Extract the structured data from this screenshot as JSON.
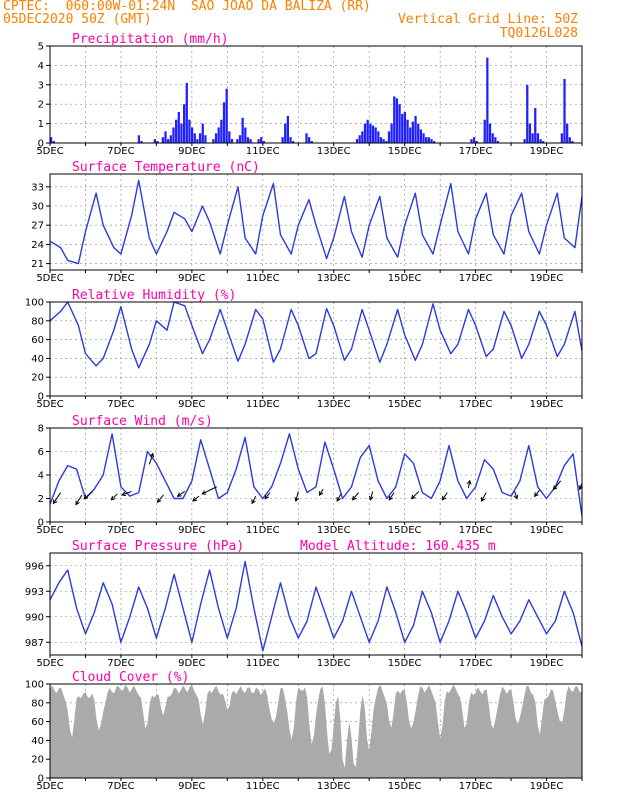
{
  "header": {
    "line1": "CPTEC:  060:00W-01:24N  SAO JOAO DA BALIZA (RR)",
    "line2": "05DEC2020 50Z (GMT)",
    "grid_note": "Vertical Grid Line: 50Z",
    "run_id": "TQ0126L028"
  },
  "colors": {
    "header": "#ff7f00",
    "title": "#ff00aa",
    "line": "#2b3bdc",
    "bar": "#2020ff",
    "cloud": "#aaaaaa",
    "grid": "#888888"
  },
  "x_labels": [
    "5DEC",
    "7DEC",
    "9DEC",
    "11DEC",
    "13DEC",
    "15DEC",
    "17DEC",
    "19DEC"
  ],
  "x_range_days": [
    0,
    15
  ],
  "chart_data": [
    {
      "id": "precip",
      "type": "bar",
      "title": "Precipitation (mm/h)",
      "ylim": [
        0,
        5
      ],
      "yticks": [
        0,
        1,
        2,
        3,
        4,
        5
      ],
      "series": [
        {
          "values": [
            0.3,
            0.1,
            0,
            0,
            0,
            0,
            0,
            0,
            0,
            0,
            0,
            0,
            0,
            0,
            0,
            0,
            0,
            0,
            0,
            0,
            0,
            0,
            0,
            0,
            0,
            0,
            0,
            0,
            0,
            0,
            0,
            0,
            0,
            0.4,
            0.1,
            0,
            0,
            0,
            0,
            0.2,
            0.1,
            0,
            0.3,
            0.6,
            0.2,
            0.4,
            0.8,
            1.2,
            1.6,
            1.0,
            2.0,
            3.1,
            1.2,
            0.8,
            0.5,
            0.2,
            0.5,
            1.0,
            0.4,
            0,
            0,
            0.2,
            0.5,
            0.8,
            1.2,
            2.1,
            2.8,
            0.6,
            0.2,
            0,
            0.2,
            0.4,
            1.3,
            0.8,
            0.3,
            0.2,
            0,
            0,
            0.2,
            0.3,
            0.1,
            0,
            0,
            0,
            0,
            0,
            0,
            0.3,
            1.0,
            1.4,
            0.3,
            0.1,
            0,
            0,
            0,
            0,
            0.5,
            0.3,
            0.1,
            0,
            0,
            0,
            0,
            0,
            0,
            0,
            0,
            0,
            0,
            0,
            0,
            0,
            0,
            0,
            0,
            0.2,
            0.4,
            0.6,
            1.0,
            1.2,
            1.0,
            0.9,
            0.8,
            0.6,
            0.3,
            0.2,
            0.1,
            0.6,
            1.0,
            2.4,
            2.3,
            2.0,
            1.5,
            1.6,
            1.2,
            0.8,
            1.1,
            1.4,
            1.0,
            0.7,
            0.5,
            0.3,
            0.3,
            0.2,
            0.1,
            0,
            0,
            0,
            0,
            0,
            0,
            0,
            0,
            0,
            0,
            0,
            0,
            0,
            0.2,
            0.3,
            0.1,
            0,
            0,
            1.2,
            4.4,
            1.0,
            0.5,
            0.3,
            0.1,
            0,
            0,
            0,
            0,
            0,
            0,
            0,
            0,
            0,
            0.2,
            3.0,
            1.0,
            0.5,
            1.8,
            0.5,
            0.2,
            0.1,
            0,
            0,
            0,
            0,
            0,
            0,
            0.5,
            3.3,
            1.0,
            0.3,
            0.1,
            0,
            0,
            0
          ]
        }
      ],
      "x_start_day": 0,
      "x_end_day": 15
    },
    {
      "id": "temp",
      "type": "line",
      "title": "Surface Temperature (nC)",
      "ylim": [
        20,
        35
      ],
      "yticks": [
        21,
        24,
        27,
        30,
        33
      ],
      "x": [
        0,
        0.3,
        0.5,
        0.8,
        1.0,
        1.3,
        1.5,
        1.8,
        2.0,
        2.3,
        2.5,
        2.8,
        3.0,
        3.3,
        3.5,
        3.8,
        4.0,
        4.3,
        4.5,
        4.8,
        5.0,
        5.3,
        5.5,
        5.8,
        6.0,
        6.3,
        6.5,
        6.8,
        7.0,
        7.3,
        7.5,
        7.8,
        8.0,
        8.3,
        8.5,
        8.8,
        9.0,
        9.3,
        9.5,
        9.8,
        10.0,
        10.3,
        10.5,
        10.8,
        11.0,
        11.3,
        11.5,
        11.8,
        12.0,
        12.3,
        12.5,
        12.8,
        13.0,
        13.3,
        13.5,
        13.8,
        14.0,
        14.3,
        14.5,
        14.8,
        15.0
      ],
      "series": [
        {
          "values": [
            24.5,
            23.5,
            21.5,
            21,
            26,
            32,
            27,
            23.5,
            22.5,
            28.5,
            34,
            25,
            22.5,
            26,
            29,
            28,
            26,
            30,
            27.5,
            22.5,
            27,
            33,
            25,
            22.5,
            28.5,
            33.5,
            25.5,
            22.5,
            27,
            31,
            27,
            21.8,
            25,
            31.5,
            26,
            22,
            27,
            31.5,
            25,
            22,
            27,
            32,
            25.5,
            22.5,
            27,
            33.5,
            26,
            22.5,
            28,
            32,
            25.5,
            22.5,
            28.5,
            32,
            26,
            22.5,
            27,
            32,
            25,
            23.5,
            31.5
          ]
        }
      ]
    },
    {
      "id": "rh",
      "type": "line",
      "title": "Relative Humidity (%)",
      "ylim": [
        0,
        100
      ],
      "yticks": [
        0,
        20,
        40,
        60,
        80,
        100
      ],
      "x": [
        0,
        0.3,
        0.5,
        0.8,
        1.0,
        1.3,
        1.5,
        1.8,
        2.0,
        2.3,
        2.5,
        2.8,
        3.0,
        3.3,
        3.5,
        3.8,
        4.0,
        4.3,
        4.5,
        4.8,
        5.0,
        5.3,
        5.5,
        5.8,
        6.0,
        6.3,
        6.5,
        6.8,
        7.0,
        7.3,
        7.5,
        7.8,
        8.0,
        8.3,
        8.5,
        8.8,
        9.0,
        9.3,
        9.5,
        9.8,
        10.0,
        10.3,
        10.5,
        10.8,
        11.0,
        11.3,
        11.5,
        11.8,
        12.0,
        12.3,
        12.5,
        12.8,
        13.0,
        13.3,
        13.5,
        13.8,
        14.0,
        14.3,
        14.5,
        14.8,
        15.0
      ],
      "series": [
        {
          "values": [
            80,
            90,
            100,
            75,
            45,
            32,
            40,
            70,
            95,
            50,
            30,
            55,
            80,
            70,
            100,
            96,
            75,
            45,
            60,
            92,
            70,
            37,
            55,
            92,
            82,
            36,
            50,
            92,
            75,
            40,
            45,
            93,
            75,
            38,
            50,
            92,
            70,
            36,
            55,
            92,
            65,
            38,
            55,
            98,
            70,
            45,
            55,
            92,
            75,
            42,
            50,
            90,
            75,
            40,
            55,
            90,
            75,
            42,
            55,
            90,
            48
          ]
        }
      ]
    },
    {
      "id": "wind",
      "type": "line",
      "title": "Surface Wind (m/s)",
      "ylim": [
        0,
        8
      ],
      "yticks": [
        0,
        2,
        4,
        6,
        8
      ],
      "x": [
        0,
        0.25,
        0.5,
        0.75,
        1.0,
        1.25,
        1.5,
        1.75,
        2.0,
        2.25,
        2.5,
        2.75,
        3.0,
        3.25,
        3.5,
        3.75,
        4.0,
        4.25,
        4.5,
        4.75,
        5.0,
        5.25,
        5.5,
        5.75,
        6.0,
        6.25,
        6.5,
        6.75,
        7.0,
        7.25,
        7.5,
        7.75,
        8.0,
        8.25,
        8.5,
        8.75,
        9.0,
        9.25,
        9.5,
        9.75,
        10.0,
        10.25,
        10.5,
        10.75,
        11.0,
        11.25,
        11.5,
        11.75,
        12.0,
        12.25,
        12.5,
        12.75,
        13.0,
        13.25,
        13.5,
        13.75,
        14.0,
        14.25,
        14.5,
        14.75,
        15.0
      ],
      "series": [
        {
          "values": [
            1.5,
            3.5,
            4.8,
            4.5,
            2.0,
            2.8,
            4.0,
            7.5,
            3.0,
            2.2,
            2.5,
            6.0,
            5.0,
            3.5,
            2.0,
            2.0,
            3.5,
            7.0,
            4.5,
            2.0,
            2.5,
            4.5,
            7.2,
            3.0,
            2.0,
            3.0,
            5.0,
            7.5,
            4.5,
            2.5,
            3.0,
            6.8,
            4.5,
            2.0,
            3.0,
            5.5,
            6.5,
            3.5,
            2.0,
            3.0,
            5.8,
            5.0,
            2.5,
            2.0,
            3.5,
            6.5,
            3.5,
            2.0,
            3.0,
            5.3,
            4.5,
            2.5,
            2.2,
            3.5,
            6.5,
            3.0,
            2.0,
            3.0,
            4.8,
            5.8,
            0.5
          ]
        }
      ],
      "arrows": [
        [
          0.3,
          2.5,
          -0.6,
          -0.9
        ],
        [
          0.9,
          2.3,
          -0.5,
          -0.8
        ],
        [
          1.2,
          2.6,
          -0.7,
          -0.6
        ],
        [
          1.9,
          2.4,
          -0.5,
          -0.5
        ],
        [
          2.3,
          2.6,
          -0.8,
          -0.3
        ],
        [
          2.8,
          4.9,
          0.3,
          0.9
        ],
        [
          3.2,
          2.3,
          -0.5,
          -0.6
        ],
        [
          3.8,
          2.6,
          -0.6,
          -0.4
        ],
        [
          4.2,
          2.2,
          -0.5,
          -0.4
        ],
        [
          4.7,
          3.0,
          -1.2,
          -0.6
        ],
        [
          5.8,
          2.2,
          -0.3,
          -0.6
        ],
        [
          6.2,
          2.5,
          -0.4,
          -0.5
        ],
        [
          7.0,
          2.6,
          -0.2,
          -0.8
        ],
        [
          7.7,
          2.8,
          -0.3,
          -0.5
        ],
        [
          8.2,
          2.4,
          -0.3,
          -0.6
        ],
        [
          8.7,
          2.5,
          -0.5,
          -0.6
        ],
        [
          9.1,
          2.6,
          -0.2,
          -0.7
        ],
        [
          9.7,
          2.5,
          -0.4,
          -0.6
        ],
        [
          10.4,
          2.6,
          -0.6,
          -0.6
        ],
        [
          11.2,
          2.5,
          -0.4,
          -0.6
        ],
        [
          11.8,
          2.9,
          0.1,
          0.6
        ],
        [
          12.3,
          2.5,
          -0.4,
          -0.7
        ],
        [
          13.1,
          2.6,
          0.2,
          -0.6
        ],
        [
          13.8,
          2.7,
          -0.4,
          -0.5
        ],
        [
          14.4,
          3.5,
          -0.6,
          -0.7
        ],
        [
          15.0,
          3.3,
          -0.2,
          -0.5
        ]
      ]
    },
    {
      "id": "pres",
      "type": "line",
      "title": "Surface Pressure (hPa)",
      "annotation": "Model Altitude: 160.435 m",
      "ylim": [
        985.5,
        997.5
      ],
      "yticks": [
        987,
        990,
        993,
        996
      ],
      "x": [
        0,
        0.25,
        0.5,
        0.75,
        1.0,
        1.25,
        1.5,
        1.75,
        2.0,
        2.25,
        2.5,
        2.75,
        3.0,
        3.25,
        3.5,
        3.75,
        4.0,
        4.25,
        4.5,
        4.75,
        5.0,
        5.25,
        5.5,
        5.75,
        6.0,
        6.25,
        6.5,
        6.75,
        7.0,
        7.25,
        7.5,
        7.75,
        8.0,
        8.25,
        8.5,
        8.75,
        9.0,
        9.25,
        9.5,
        9.75,
        10.0,
        10.25,
        10.5,
        10.75,
        11.0,
        11.25,
        11.5,
        11.75,
        12.0,
        12.25,
        12.5,
        12.75,
        13.0,
        13.25,
        13.5,
        13.75,
        14.0,
        14.25,
        14.5,
        14.75,
        15.0
      ],
      "series": [
        {
          "values": [
            992,
            994,
            995.5,
            991,
            988,
            990.5,
            994,
            991.5,
            987,
            990,
            993.5,
            991,
            987.5,
            991,
            995,
            991,
            987,
            991.5,
            995.5,
            991,
            987.5,
            991,
            996.5,
            991,
            986,
            990,
            994,
            990,
            987.5,
            989.5,
            993.5,
            990.5,
            987.5,
            989.5,
            993,
            990,
            987,
            989.5,
            993.5,
            990.5,
            987,
            989,
            993,
            990.5,
            987,
            989.5,
            993,
            990.5,
            987.5,
            989.5,
            992.5,
            990,
            988,
            989.5,
            992,
            990,
            988,
            989.5,
            993,
            990.5,
            986.5
          ]
        }
      ]
    },
    {
      "id": "cloud",
      "type": "area",
      "title": "Cloud Cover (%)",
      "ylim": [
        0,
        100
      ],
      "yticks": [
        0,
        20,
        40,
        60,
        80,
        100
      ],
      "x": [
        0,
        0.5,
        1.0,
        1.5,
        2.0,
        2.5,
        3.0,
        3.5,
        4.0,
        4.5,
        5.0,
        5.5,
        6.0,
        6.5,
        7.0,
        7.5,
        8.0,
        8.5,
        9.0,
        9.5,
        10.0,
        10.5,
        11.0,
        11.5,
        12.0,
        12.5,
        13.0,
        13.5,
        14.0,
        14.5,
        15.0
      ],
      "series": [
        {
          "values": [
            95,
            92,
            88,
            90,
            96,
            94,
            90,
            93,
            96,
            95,
            93,
            94,
            92,
            95,
            96,
            97,
            97,
            93,
            95,
            96,
            93,
            95,
            94,
            96,
            92,
            95,
            93,
            96,
            90,
            96,
            94
          ]
        }
      ],
      "dips": [
        [
          0.6,
          45
        ],
        [
          1.4,
          50
        ],
        [
          2.7,
          55
        ],
        [
          3.2,
          70
        ],
        [
          4.3,
          60
        ],
        [
          5.0,
          75
        ],
        [
          6.3,
          55
        ],
        [
          6.8,
          40
        ],
        [
          7.4,
          35
        ],
        [
          7.9,
          20
        ],
        [
          8.3,
          10
        ],
        [
          8.6,
          5
        ],
        [
          9.0,
          30
        ],
        [
          9.6,
          55
        ],
        [
          10.2,
          50
        ],
        [
          11.0,
          45
        ],
        [
          11.7,
          55
        ],
        [
          12.5,
          50
        ],
        [
          13.2,
          55
        ],
        [
          13.8,
          50
        ],
        [
          14.4,
          55
        ]
      ]
    }
  ]
}
